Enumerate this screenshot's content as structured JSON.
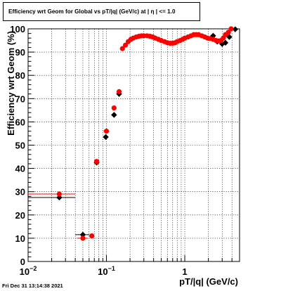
{
  "chart_data": {
    "type": "scatter",
    "title": "Efficiency wrt Geom for Global vs pT/|q| (GeV/c) at |  η  | <= 1.0",
    "xlabel": "pT/|q| (GeV/c)",
    "ylabel": "Efficiency wrt Geom (%)",
    "xscale": "log",
    "xlim": [
      0.01,
      5
    ],
    "ylim": [
      0,
      100
    ],
    "grid": true,
    "x_ticks": [
      {
        "value": 0.01,
        "base": "10",
        "exp": "−2"
      },
      {
        "value": 0.1,
        "base": "10",
        "exp": "−1"
      },
      {
        "value": 1,
        "base": "1",
        "exp": ""
      }
    ],
    "y_ticks": [
      0,
      10,
      20,
      30,
      40,
      50,
      60,
      70,
      80,
      90,
      100
    ],
    "series": [
      {
        "color": "#000000",
        "marker": "diamond",
        "x": [
          0.025,
          0.05,
          0.075,
          0.098,
          0.125,
          0.145,
          2.3,
          2.6,
          3.0,
          3.3,
          3.7,
          4.4
        ],
        "y": [
          27.5,
          11.5,
          42.5,
          53.5,
          63.0,
          72.0,
          97.0,
          94.5,
          93.5,
          94.0,
          96.5,
          99.8
        ],
        "xerr": [
          0.015,
          0.01,
          null,
          null,
          null,
          null,
          null,
          null,
          null,
          null,
          null,
          null
        ]
      },
      {
        "color": "#ff0000",
        "marker": "circle",
        "x": [
          0.025,
          0.05,
          0.065,
          0.075,
          0.1,
          0.125,
          0.145,
          0.16,
          0.175,
          0.19,
          0.205,
          0.22,
          0.24,
          0.26,
          0.28,
          0.3,
          0.33,
          0.36,
          0.39,
          0.42,
          0.46,
          0.5,
          0.55,
          0.6,
          0.65,
          0.7,
          0.75,
          0.8,
          0.87,
          0.94,
          1.0,
          1.1,
          1.2,
          1.3,
          1.4,
          1.5,
          1.65,
          1.8,
          1.95,
          2.1,
          2.3,
          2.5,
          2.7,
          2.9,
          3.1,
          3.3,
          3.6,
          3.9
        ],
        "y": [
          29.0,
          10.0,
          11.0,
          43.0,
          56.0,
          66.0,
          73.0,
          91.5,
          93.0,
          94.5,
          95.5,
          96.0,
          96.5,
          96.8,
          97.0,
          97.0,
          97.0,
          96.8,
          96.5,
          96.0,
          95.5,
          95.0,
          94.5,
          94.0,
          93.8,
          93.8,
          94.0,
          94.5,
          95.0,
          95.5,
          96.0,
          96.5,
          97.0,
          97.5,
          97.5,
          97.5,
          97.0,
          96.5,
          96.0,
          95.8,
          95.5,
          95.0,
          94.8,
          95.0,
          96.0,
          97.5,
          98.5,
          100.0
        ],
        "xerr": [
          0.015,
          0.008,
          null,
          null,
          0.008,
          null,
          null,
          null,
          null,
          null,
          null,
          null,
          null,
          null,
          null,
          null,
          null,
          null,
          null,
          null,
          null,
          null,
          null,
          null,
          null,
          null,
          null,
          null,
          null,
          null,
          null,
          null,
          null,
          null,
          null,
          null,
          null,
          null,
          null,
          null,
          null,
          null,
          null,
          null,
          null,
          null,
          null,
          null
        ]
      }
    ]
  },
  "footer": {
    "timestamp": "Fri Dec 31 13:14:38 2021"
  }
}
